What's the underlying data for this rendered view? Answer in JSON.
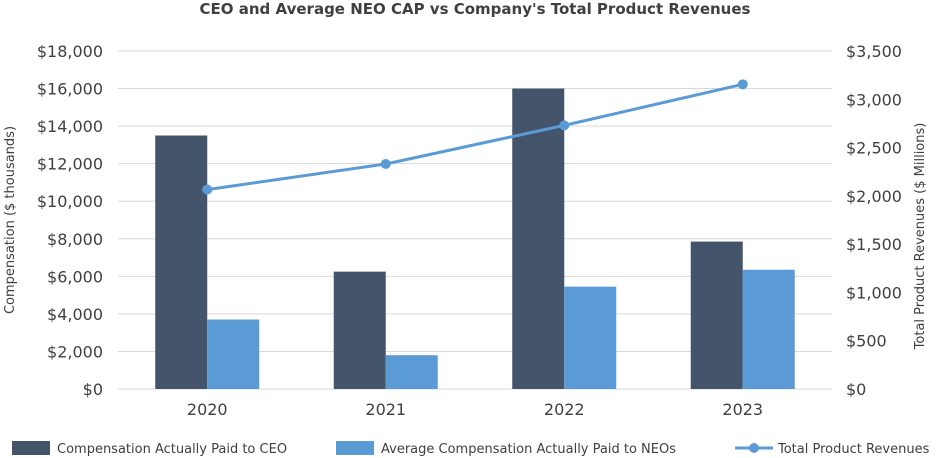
{
  "chart_data": {
    "type": "bar",
    "title": "CEO and Average NEO CAP vs Company's Total Product Revenues",
    "categories": [
      "2020",
      "2021",
      "2022",
      "2023"
    ],
    "series": [
      {
        "name": "Compensation Actually Paid to CEO",
        "kind": "bar",
        "axis": "left",
        "color": "#44546a",
        "values": [
          13500,
          6250,
          16000,
          7850
        ]
      },
      {
        "name": "Average Compensation Actually Paid to NEOs",
        "kind": "bar",
        "axis": "left",
        "color": "#5b9bd5",
        "values": [
          3700,
          1800,
          5450,
          6350
        ]
      },
      {
        "name": "Total Product Revenues",
        "kind": "line",
        "axis": "right",
        "color": "#5b9bd5",
        "values": [
          2065,
          2330,
          2730,
          3155
        ]
      }
    ],
    "ylabel": "Compensation ($ thousands)",
    "ylim": [
      0,
      18000
    ],
    "yticks": [
      0,
      2000,
      4000,
      6000,
      8000,
      10000,
      12000,
      14000,
      16000,
      18000
    ],
    "ytick_labels": [
      "$0",
      "$2,000",
      "$4,000",
      "$6,000",
      "$8,000",
      "$10,000",
      "$12,000",
      "$14,000",
      "$16,000",
      "$18,000"
    ],
    "y2label": "Total Product Revenues ($ Millions)",
    "y2lim": [
      0,
      3500
    ],
    "y2ticks": [
      0,
      500,
      1000,
      1500,
      2000,
      2500,
      3000,
      3500
    ],
    "y2tick_labels": [
      "$0",
      "$500",
      "$1,000",
      "$1,500",
      "$2,000",
      "$2,500",
      "$3,000",
      "$3,500"
    ],
    "grid": true,
    "legend_position": "bottom"
  }
}
